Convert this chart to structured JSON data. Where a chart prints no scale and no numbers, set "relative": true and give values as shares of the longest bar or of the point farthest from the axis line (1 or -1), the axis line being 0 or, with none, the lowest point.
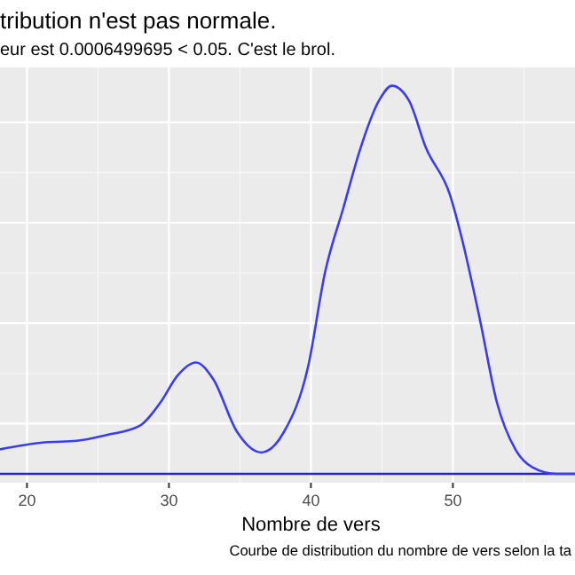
{
  "chart_data": {
    "type": "line",
    "title": "tribution n'est pas normale.",
    "subtitle": "eur est  0.0006499695  < 0.05. C'est le brol.",
    "xlabel": "Nombre de vers",
    "annotations": [
      "Courbe de distribution du nombre de vers selon la ta"
    ],
    "relative": true,
    "xlim": [
      18.1,
      58.6
    ],
    "xticks": [
      20,
      30,
      40,
      50
    ],
    "grid": true,
    "series": [
      {
        "color": "#3b3bf0",
        "x": [
          18.1,
          21.25,
          23.5,
          25.6,
          27.9,
          29.4,
          30.6,
          31.9,
          33.1,
          34.8,
          36.5,
          38.1,
          39.8,
          41.0,
          42.3,
          43.5,
          44.8,
          45.7,
          46.9,
          48.1,
          49.8,
          50.6,
          51.9,
          53.1,
          54.4,
          55.6,
          57.3,
          58.6
        ],
        "values": [
          0.063,
          0.081,
          0.085,
          0.1,
          0.123,
          0.184,
          0.253,
          0.287,
          0.245,
          0.108,
          0.055,
          0.108,
          0.276,
          0.52,
          0.687,
          0.84,
          0.962,
          1.0,
          0.962,
          0.84,
          0.718,
          0.611,
          0.398,
          0.184,
          0.063,
          0.017,
          0.0,
          0.0
        ]
      }
    ]
  }
}
